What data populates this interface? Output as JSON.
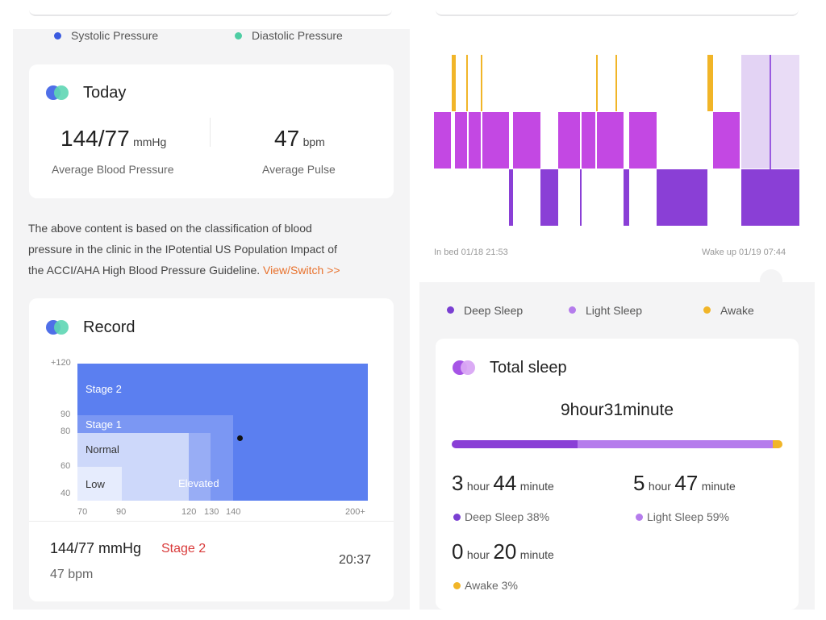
{
  "colors": {
    "systolic": "#3b5be0",
    "diastolic": "#4ecda3",
    "stage2": "#5b7ff0",
    "accent_orange": "#e8712c",
    "stage_red": "#d93a3a",
    "deep": "#7a3fd2",
    "light": "#b57cec",
    "awake": "#f1b528"
  },
  "left": {
    "legend": {
      "systolic": "Systolic Pressure",
      "diastolic": "Diastolic Pressure"
    },
    "today": {
      "title": "Today",
      "bp_value": "144/77",
      "bp_unit": "mmHg",
      "bp_label": "Average Blood Pressure",
      "pulse_value": "47",
      "pulse_unit": "bpm",
      "pulse_label": "Average Pulse"
    },
    "note": {
      "line1": "The above content is based on the classification of blood",
      "line2": "pressure in the clinic in the IPotential US Population Impact of",
      "line3": "the ACCI/AHA High Blood Pressure Guideline.",
      "link": "View/Switch >>"
    },
    "record": {
      "title": "Record",
      "y_ticks": [
        "+120",
        "90",
        "80",
        "60",
        "40"
      ],
      "x_ticks": [
        "70",
        "90",
        "120",
        "130",
        "140",
        "200+"
      ],
      "zones": {
        "stage2": "Stage 2",
        "stage1": "Stage 1",
        "normal": "Normal",
        "low": "Low",
        "elevated": "Elevated"
      },
      "reading": {
        "systolic": 144,
        "diastolic": 77
      },
      "entry": {
        "value": "144/77 mmHg",
        "stage": "Stage 2",
        "pulse": "47 bpm",
        "time": "20:37"
      }
    }
  },
  "right": {
    "hypnogram": {
      "in_bed": "In bed  01/18 21:53",
      "wake_up": "Wake up 01/19 07:44"
    },
    "legend": {
      "deep": "Deep Sleep",
      "light": "Light Sleep",
      "awake": "Awake"
    },
    "total": {
      "title": "Total sleep",
      "value": "9hour31minute",
      "deep_fraction": 0.38,
      "light_fraction": 0.59,
      "awake_fraction": 0.03,
      "deep_h": "3",
      "deep_m": "44",
      "deep_label": "Deep Sleep 38%",
      "light_h": "5",
      "light_m": "47",
      "light_label": "Light Sleep 59%",
      "awake_h": "0",
      "awake_m": "20",
      "awake_label": "Awake 3%",
      "hour_unit": "hour",
      "minute_unit": "minute"
    }
  }
}
